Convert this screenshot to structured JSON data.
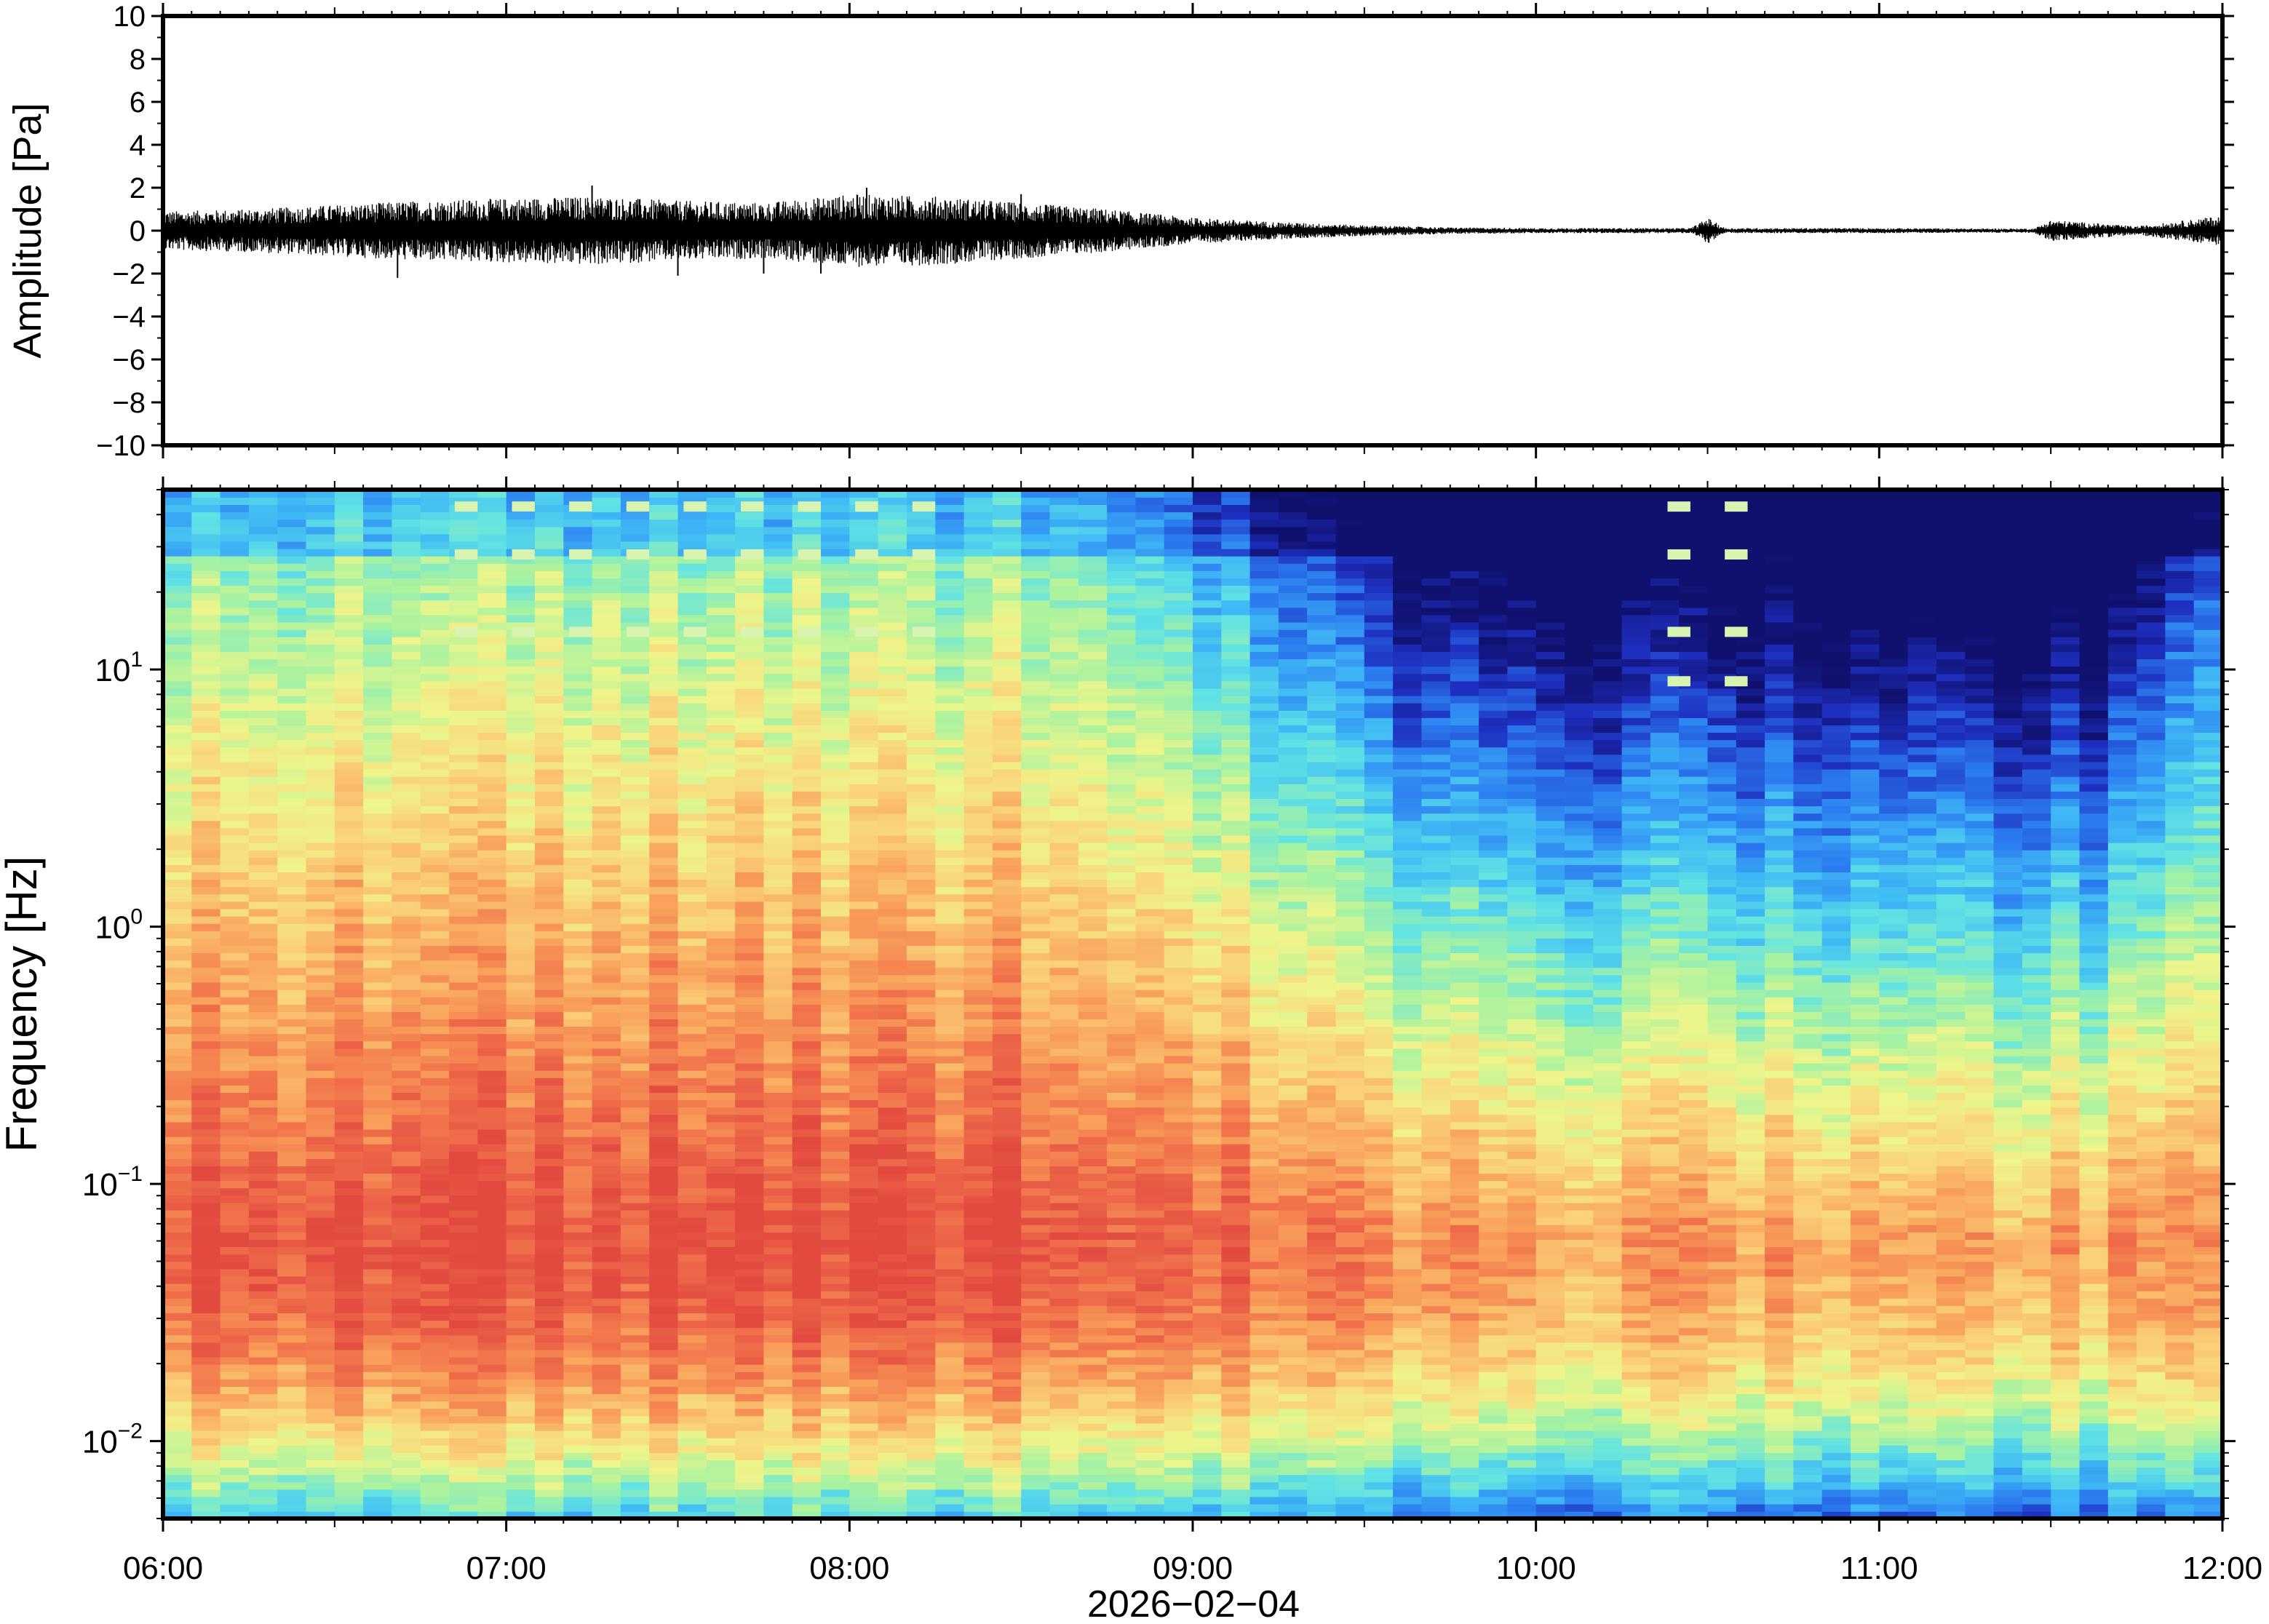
{
  "chart_data": [
    {
      "type": "line",
      "title": "",
      "ylabel": "Amplitude [Pa]",
      "ylim": [
        -10,
        10
      ],
      "yticks": [
        {
          "value": 10,
          "label": "10"
        },
        {
          "value": 8,
          "label": "8"
        },
        {
          "value": 6,
          "label": "6"
        },
        {
          "value": 4,
          "label": "4"
        },
        {
          "value": 2,
          "label": "2"
        },
        {
          "value": 0,
          "label": "0"
        },
        {
          "value": -2,
          "label": "−2"
        },
        {
          "value": -4,
          "label": "−4"
        },
        {
          "value": -6,
          "label": "−6"
        },
        {
          "value": -8,
          "label": "−8"
        },
        {
          "value": -10,
          "label": "−10"
        }
      ],
      "x_range": [
        "06:00",
        "12:00"
      ],
      "series": [
        {
          "color": "#000000",
          "envelope": {
            "x_hours": [
              6.0,
              6.25,
              6.5,
              6.75,
              7.0,
              7.25,
              7.5,
              7.75,
              8.0,
              8.25,
              8.5,
              8.75,
              9.0,
              9.25,
              9.5,
              9.75,
              10.0,
              10.25,
              10.45,
              10.5,
              10.55,
              10.75,
              11.0,
              11.25,
              11.45,
              11.5,
              11.75,
              12.0
            ],
            "max_abs_pa": [
              0.9,
              1.0,
              1.2,
              1.4,
              1.5,
              1.6,
              1.4,
              1.3,
              1.7,
              1.6,
              1.3,
              1.0,
              0.6,
              0.4,
              0.25,
              0.15,
              0.12,
              0.12,
              0.12,
              0.6,
              0.12,
              0.12,
              0.12,
              0.1,
              0.1,
              0.5,
              0.2,
              0.7
            ]
          },
          "spikes": [
            {
              "time": "06:41",
              "value": -2.2
            },
            {
              "time": "07:15",
              "value": 2.1
            },
            {
              "time": "07:30",
              "value": -2.1
            },
            {
              "time": "07:45",
              "value": -2.0
            },
            {
              "time": "08:03",
              "value": 2.0
            },
            {
              "time": "07:55",
              "value": -2.0
            },
            {
              "time": "08:30",
              "value": 1.7
            }
          ]
        }
      ]
    },
    {
      "type": "heatmap",
      "title": "",
      "ylabel": "Frequency [Hz]",
      "yscale": "log",
      "ylim": [
        0.005,
        50
      ],
      "yticks": [
        {
          "value": 0.01,
          "base": "10",
          "exp": "−2"
        },
        {
          "value": 0.1,
          "base": "10",
          "exp": "−1"
        },
        {
          "value": 1,
          "base": "10",
          "exp": "0"
        },
        {
          "value": 10,
          "base": "10",
          "exp": "1"
        }
      ],
      "xlabel": "2026−02−04",
      "xticks": [
        "06:00",
        "07:00",
        "08:00",
        "09:00",
        "10:00",
        "11:00",
        "12:00"
      ],
      "colormap": "jet (blue = low power, red = high power)",
      "colors": [
        "#10106e",
        "#1e2fc0",
        "#2b7af0",
        "#3fb8f5",
        "#62e3e3",
        "#a8f2a0",
        "#eef58a",
        "#fad27a",
        "#f9a25c",
        "#f06e4a",
        "#e2493f"
      ],
      "power_scale": "relative (no colour bar printed)",
      "tonal_lines": [
        {
          "time_range": [
            "06:50",
            "08:20"
          ],
          "frequencies_hz": [
            14,
            28,
            43
          ]
        },
        {
          "time_range": [
            "10:22",
            "10:37"
          ],
          "frequencies_hz": [
            9,
            14,
            28,
            43
          ]
        }
      ]
    }
  ]
}
